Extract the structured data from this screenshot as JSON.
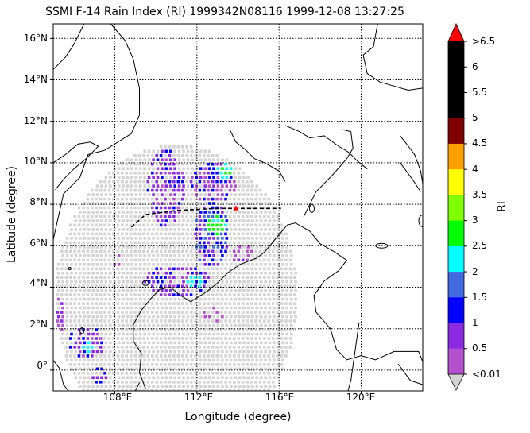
{
  "title": "SSMI F-14 Rain Index (RI) 1999342N08116 1999-12-08 13:27:25",
  "xlabel": "Longitude (degree)",
  "ylabel": "Latitude (degree)",
  "lon_ticks": [
    "108°E",
    "112°E",
    "116°E",
    "120°E"
  ],
  "lat_ticks": [
    "16°N",
    "14°N",
    "12°N",
    "10°N",
    "8°N",
    "6°N",
    "4°N",
    "2°N",
    "0°"
  ],
  "colorbar": {
    "label": "RI",
    "tick_labels": [
      ">6.5",
      "6",
      "5.5",
      "5",
      "4.5",
      "4",
      "3.5",
      "3",
      "2.5",
      "2",
      "1.5",
      "1",
      "0.5",
      "<0.01"
    ],
    "colors": [
      "#000000",
      "#000000",
      "#000000",
      "#7f0000",
      "#ff9f00",
      "#ffff00",
      "#7fff00",
      "#00ff00",
      "#00ffff",
      "#4169e1",
      "#0000ff",
      "#8a2be2",
      "#b452cd"
    ],
    "over_color": "#ff0000",
    "under_color": "#d3d3d3"
  },
  "chart_data": {
    "type": "map",
    "lon_range": [
      105,
      123
    ],
    "lat_range": [
      -1,
      16.7
    ],
    "grid": true,
    "no_rain_color": "#d3d3d3",
    "rain_colors": {
      "light": "#b452cd",
      "moderate": "#8a2be2",
      "heavy": "#0000ff",
      "intense": "#4169e1",
      "very_intense": "#00ffff",
      "extreme": "#00ff00"
    },
    "storm_center": {
      "lon": 113.9,
      "lat": 7.8
    },
    "track": [
      [
        108.8,
        6.9
      ],
      [
        109.5,
        7.5
      ],
      [
        111.0,
        7.7
      ],
      [
        113.0,
        7.8
      ],
      [
        114.5,
        7.8
      ],
      [
        116.1,
        7.8
      ]
    ]
  }
}
